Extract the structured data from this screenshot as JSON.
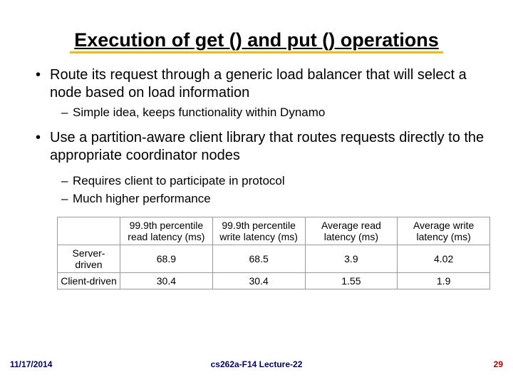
{
  "title": "Execution of get () and put () operations",
  "bullets": {
    "b1": "Route its request through a generic load balancer that will select a node based on load information",
    "b1a": "Simple idea, keeps functionality within Dynamo",
    "b2": "Use a partition-aware client library that routes requests directly to the appropriate coordinator nodes",
    "b2a": "Requires client to participate in protocol",
    "b2b": "Much higher performance"
  },
  "latency_table": {
    "columns": [
      "",
      "99.9th percentile read latency (ms)",
      "99.9th percentile write latency (ms)",
      "Average read latency (ms)",
      "Average write latency (ms)"
    ],
    "rows": [
      {
        "label": "Server-driven",
        "v1": "68.9",
        "v2": "68.5",
        "v3": "3.9",
        "v4": "4.02"
      },
      {
        "label": "Client-driven",
        "v1": "30.4",
        "v2": "30.4",
        "v3": "1.55",
        "v4": "1.9"
      }
    ],
    "border_color": "#999999",
    "font_size": 14
  },
  "footer": {
    "date": "11/17/2014",
    "center": "cs262a-F14 Lecture-22",
    "page": "29",
    "date_color": "#000070",
    "center_color": "#000070",
    "page_color": "#b00000"
  }
}
